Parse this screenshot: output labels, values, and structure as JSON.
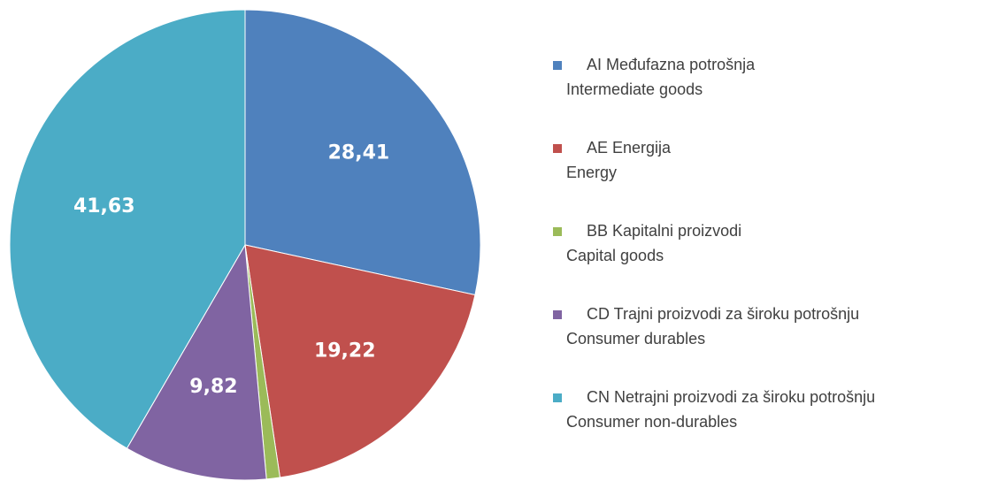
{
  "chart_data": {
    "type": "pie",
    "categories": [
      [
        "AI Međufazna potrošnja",
        "Intermediate goods"
      ],
      [
        "AE Energija",
        "Energy"
      ],
      [
        "BB Kapitalni proizvodi",
        "Capital goods"
      ],
      [
        "CD  Trajni proizvodi za široku potrošnju",
        "Consumer durables"
      ],
      [
        "CN  Netrajni proizvodi za široku potrošnju",
        "Consumer non-durables"
      ]
    ],
    "values": [
      28.41,
      19.22,
      0.92,
      9.82,
      41.63
    ],
    "value_labels": [
      "28,41",
      "19,22",
      null,
      "9,82",
      "41,63"
    ],
    "colors": [
      "#4f81bd",
      "#c0504d",
      "#9bbb59",
      "#8064a2",
      "#4bacc6"
    ],
    "legend": "right"
  }
}
